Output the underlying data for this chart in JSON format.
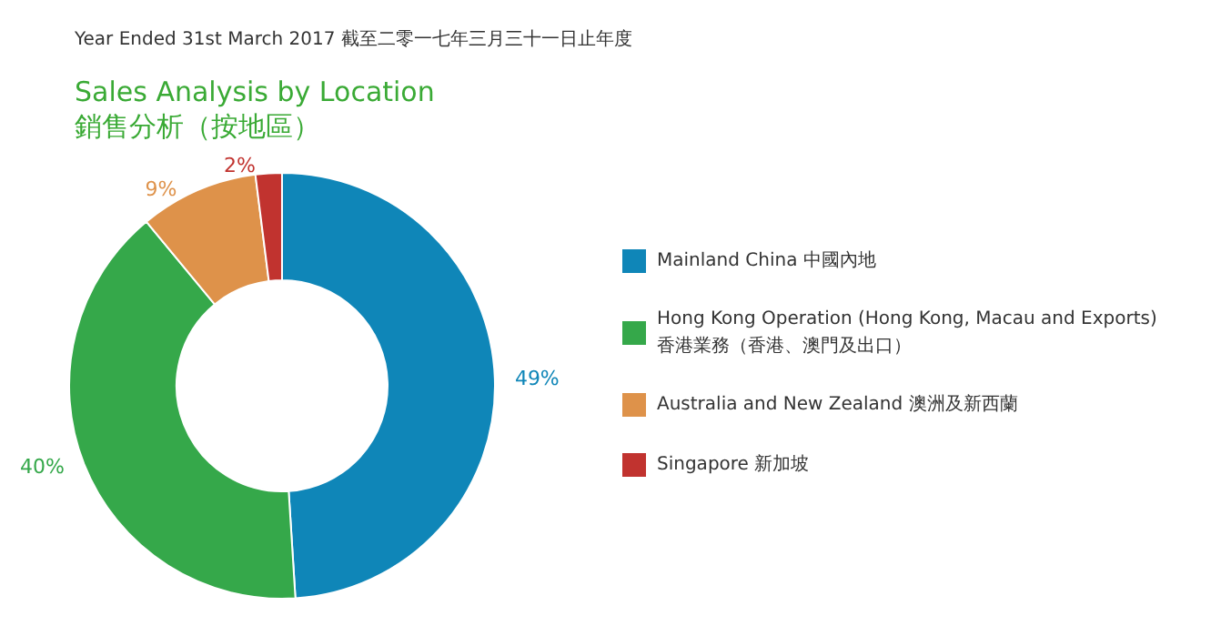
{
  "chart_data": {
    "type": "donut",
    "title": "Sales Analysis by Location\n銷售分析（按地區）",
    "subtitle": "Year Ended 31st March 2017 截至二零一七年三月三十一日止年度",
    "categories": [
      "Mainland China 中國內地",
      "Hong Kong Operation (Hong Kong, Macau and Exports)\n香港業務（香港、澳門及出口）",
      "Australia and New Zealand 澳洲及新西蘭",
      "Singapore 新加坡"
    ],
    "values": [
      49,
      40,
      9,
      2
    ],
    "colors": [
      "#0f86b8",
      "#35a84a",
      "#de924a",
      "#c1332f"
    ],
    "value_labels": [
      "49%",
      "40%",
      "9%",
      "2%"
    ],
    "legend": "right"
  }
}
